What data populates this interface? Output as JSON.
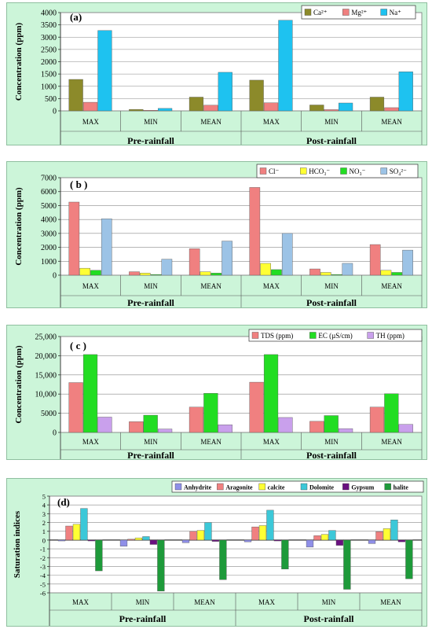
{
  "chart_data": [
    {
      "type": "bar",
      "panel_label": "(a)",
      "ylabel": "Concentration (ppm)",
      "ylim": [
        0,
        4000
      ],
      "yticks": [
        0,
        500,
        1000,
        1500,
        2000,
        2500,
        3000,
        3500,
        4000
      ],
      "ytick_labels": [
        "0",
        "500",
        "1000",
        "1500",
        "2000",
        "2500",
        "3000",
        "3500",
        "4000"
      ],
      "categories": [
        "MAX",
        "MIN",
        "MEAN",
        "MAX",
        "MIN",
        "MEAN"
      ],
      "groups": [
        "Pre-rainfall",
        "Post-rainfall"
      ],
      "legend_position": "top-right",
      "grid": true,
      "series": [
        {
          "name": "Ca²⁺",
          "color": "#8c8a2a",
          "values": [
            1280,
            60,
            560,
            1250,
            240,
            560
          ]
        },
        {
          "name": "Mg²⁺",
          "color": "#f08080",
          "values": [
            350,
            25,
            230,
            330,
            50,
            130
          ]
        },
        {
          "name": "Na⁺",
          "color": "#1ec2f0",
          "values": [
            3270,
            100,
            1570,
            3690,
            320,
            1590
          ]
        }
      ]
    },
    {
      "type": "bar",
      "panel_label": "( b )",
      "ylabel": "Concentration (ppm)",
      "ylim": [
        0,
        7000
      ],
      "yticks": [
        0,
        1000,
        2000,
        3000,
        4000,
        5000,
        6000,
        7000
      ],
      "ytick_labels": [
        "0",
        "1000",
        "2000",
        "3000",
        "4000",
        "5000",
        "6000",
        "7000"
      ],
      "categories": [
        "MAX",
        "MIN",
        "MEAN",
        "MAX",
        "MIN",
        "MEAN"
      ],
      "groups": [
        "Pre-rainfall",
        "Post-rainfall"
      ],
      "legend_position": "top-right",
      "grid": true,
      "series": [
        {
          "name": "Cl⁻",
          "color": "#f08080",
          "values": [
            5250,
            250,
            1900,
            6300,
            450,
            2200
          ]
        },
        {
          "name": "HCO₃⁻",
          "color": "#ffff33",
          "values": [
            500,
            150,
            250,
            850,
            200,
            350
          ]
        },
        {
          "name": "NO₃⁻",
          "color": "#22dd22",
          "values": [
            350,
            50,
            150,
            400,
            50,
            200
          ]
        },
        {
          "name": "SO₄²⁻",
          "color": "#9cc3e6",
          "values": [
            4050,
            1150,
            2450,
            3000,
            850,
            1800
          ]
        }
      ]
    },
    {
      "type": "bar",
      "panel_label": "( c )",
      "ylabel": "Concentration (ppm)",
      "ylim": [
        0,
        25000
      ],
      "yticks": [
        0,
        5000,
        10000,
        15000,
        20000,
        25000
      ],
      "ytick_labels": [
        "0",
        "5000",
        "10,000",
        "15,000",
        "20,000",
        "25,000"
      ],
      "categories": [
        "MAX",
        "MIN",
        "MEAN",
        "MAX",
        "MIN",
        "MEAN"
      ],
      "groups": [
        "Pre-rainfall",
        "Post-rainfall"
      ],
      "legend_position": "top-right",
      "grid": true,
      "series": [
        {
          "name": "TDS (ppm)",
          "color": "#f08080",
          "values": [
            13000,
            2800,
            6600,
            13100,
            2900,
            6600
          ]
        },
        {
          "name": "EC (µS/cm)",
          "color": "#22dd22",
          "values": [
            20300,
            4500,
            10200,
            20300,
            4400,
            10100
          ]
        },
        {
          "name": "TH (ppm)",
          "color": "#c9a0ec",
          "values": [
            4000,
            900,
            2000,
            3900,
            1000,
            2100
          ]
        }
      ]
    },
    {
      "type": "bar",
      "panel_label": "(d)",
      "ylabel": "Saturation indices",
      "ylim": [
        -6,
        5
      ],
      "yticks": [
        -6,
        -5,
        -4,
        -3,
        -2,
        -1,
        0,
        1,
        2,
        3,
        4,
        5
      ],
      "ytick_labels": [
        "-6",
        "-5",
        "-4",
        "-3",
        "-2",
        "-1",
        "0",
        "1",
        "2",
        "3",
        "4",
        "5"
      ],
      "categories": [
        "MAX",
        "MIN",
        "MEAN",
        "MAX",
        "MIN",
        "MEAN"
      ],
      "groups": [
        "Pre-rainfall",
        "Post-rainfall"
      ],
      "legend_position": "top",
      "grid": true,
      "series": [
        {
          "name": "Anhydrite",
          "color": "#8f8fe8",
          "values": [
            -0.1,
            -0.7,
            -0.3,
            -0.2,
            -0.8,
            -0.4
          ]
        },
        {
          "name": "Aragonite",
          "color": "#f08080",
          "values": [
            1.6,
            0.1,
            1.0,
            1.5,
            0.5,
            0.95
          ]
        },
        {
          "name": "calcite",
          "color": "#ffff33",
          "values": [
            1.8,
            0.25,
            1.1,
            1.65,
            0.65,
            1.3
          ]
        },
        {
          "name": "Dolomite",
          "color": "#3cc8d8",
          "values": [
            3.6,
            0.4,
            2.0,
            3.4,
            1.1,
            2.3
          ]
        },
        {
          "name": "Gypsum",
          "color": "#6a1080",
          "values": [
            -0.1,
            -0.5,
            -0.15,
            -0.1,
            -0.6,
            -0.2
          ]
        },
        {
          "name": "halite",
          "color": "#1e9a3a",
          "values": [
            -3.5,
            -5.8,
            -4.5,
            -3.3,
            -5.6,
            -4.4
          ]
        }
      ]
    }
  ]
}
